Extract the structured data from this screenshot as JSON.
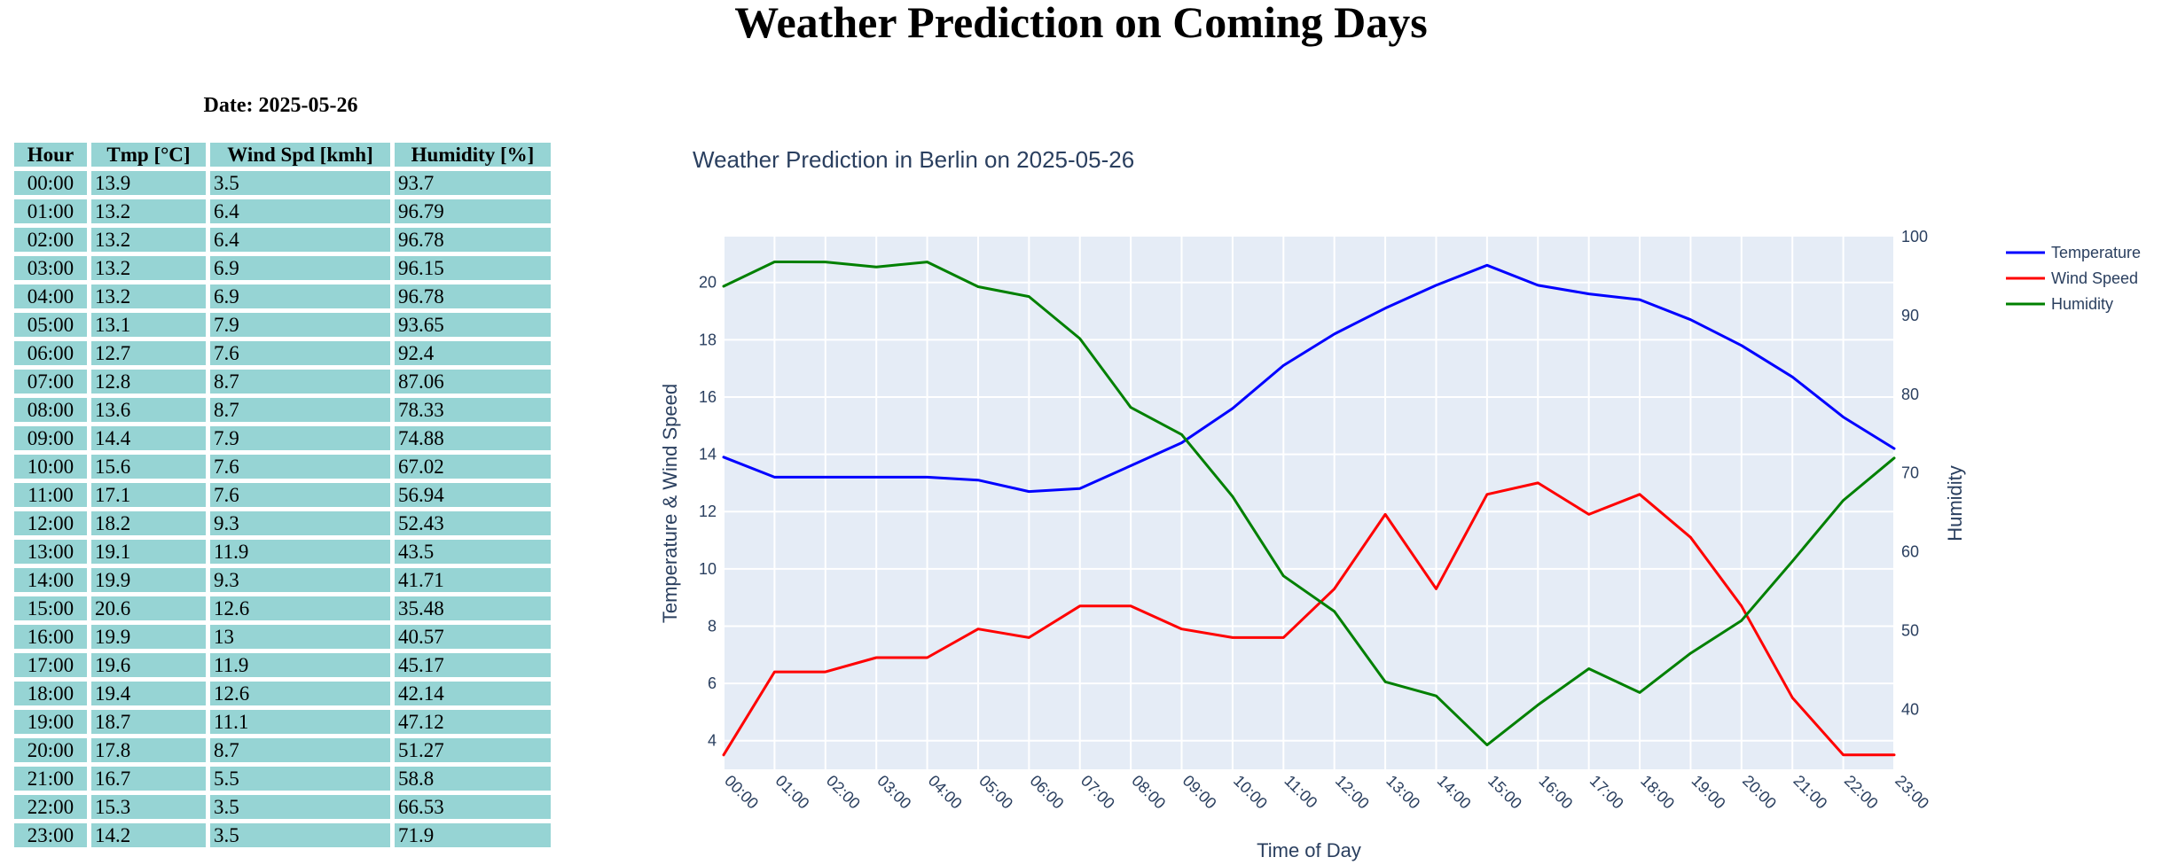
{
  "page": {
    "title": "Weather Prediction on Coming Days"
  },
  "table": {
    "date_label": "Date: 2025-05-26",
    "headers": [
      "Hour",
      "Tmp [°C]",
      "Wind Spd [kmh]",
      "Humidity [%]"
    ],
    "rows": [
      [
        "00:00",
        "13.9",
        "3.5",
        "93.7"
      ],
      [
        "01:00",
        "13.2",
        "6.4",
        "96.79"
      ],
      [
        "02:00",
        "13.2",
        "6.4",
        "96.78"
      ],
      [
        "03:00",
        "13.2",
        "6.9",
        "96.15"
      ],
      [
        "04:00",
        "13.2",
        "6.9",
        "96.78"
      ],
      [
        "05:00",
        "13.1",
        "7.9",
        "93.65"
      ],
      [
        "06:00",
        "12.7",
        "7.6",
        "92.4"
      ],
      [
        "07:00",
        "12.8",
        "8.7",
        "87.06"
      ],
      [
        "08:00",
        "13.6",
        "8.7",
        "78.33"
      ],
      [
        "09:00",
        "14.4",
        "7.9",
        "74.88"
      ],
      [
        "10:00",
        "15.6",
        "7.6",
        "67.02"
      ],
      [
        "11:00",
        "17.1",
        "7.6",
        "56.94"
      ],
      [
        "12:00",
        "18.2",
        "9.3",
        "52.43"
      ],
      [
        "13:00",
        "19.1",
        "11.9",
        "43.5"
      ],
      [
        "14:00",
        "19.9",
        "9.3",
        "41.71"
      ],
      [
        "15:00",
        "20.6",
        "12.6",
        "35.48"
      ],
      [
        "16:00",
        "19.9",
        "13",
        "40.57"
      ],
      [
        "17:00",
        "19.6",
        "11.9",
        "45.17"
      ],
      [
        "18:00",
        "19.4",
        "12.6",
        "42.14"
      ],
      [
        "19:00",
        "18.7",
        "11.1",
        "47.12"
      ],
      [
        "20:00",
        "17.8",
        "8.7",
        "51.27"
      ],
      [
        "21:00",
        "16.7",
        "5.5",
        "58.8"
      ],
      [
        "22:00",
        "15.3",
        "3.5",
        "66.53"
      ],
      [
        "23:00",
        "14.2",
        "3.5",
        "71.9"
      ]
    ]
  },
  "chart_data": {
    "type": "line",
    "title": "Weather Prediction in Berlin on 2025-05-26",
    "xlabel": "Time of Day",
    "ylabel": "Temperature & Wind Speed",
    "y2label": "Humidity",
    "categories": [
      "00:00",
      "01:00",
      "02:00",
      "03:00",
      "04:00",
      "05:00",
      "06:00",
      "07:00",
      "08:00",
      "09:00",
      "10:00",
      "11:00",
      "12:00",
      "13:00",
      "14:00",
      "15:00",
      "16:00",
      "17:00",
      "18:00",
      "19:00",
      "20:00",
      "21:00",
      "22:00",
      "23:00"
    ],
    "ylim": [
      3.0,
      21.6
    ],
    "y_ticks": [
      4,
      6,
      8,
      10,
      12,
      14,
      16,
      18,
      20
    ],
    "y2lim": [
      32.4,
      100
    ],
    "y2_ticks": [
      40,
      50,
      60,
      70,
      80,
      90,
      100
    ],
    "grid": true,
    "legend_position": "top-right",
    "plot_background": "#e5ecf6",
    "series": [
      {
        "name": "Temperature",
        "axis": "left",
        "color": "#0000ff",
        "values": [
          13.9,
          13.2,
          13.2,
          13.2,
          13.2,
          13.1,
          12.7,
          12.8,
          13.6,
          14.4,
          15.6,
          17.1,
          18.2,
          19.1,
          19.9,
          20.6,
          19.9,
          19.6,
          19.4,
          18.7,
          17.8,
          16.7,
          15.3,
          14.2
        ]
      },
      {
        "name": "Wind Speed",
        "axis": "left",
        "color": "#ff0000",
        "values": [
          3.5,
          6.4,
          6.4,
          6.9,
          6.9,
          7.9,
          7.6,
          8.7,
          8.7,
          7.9,
          7.6,
          7.6,
          9.3,
          11.9,
          9.3,
          12.6,
          13,
          11.9,
          12.6,
          11.1,
          8.7,
          5.5,
          3.5,
          3.5
        ]
      },
      {
        "name": "Humidity",
        "axis": "right",
        "color": "#008000",
        "values": [
          93.7,
          96.79,
          96.78,
          96.15,
          96.78,
          93.65,
          92.4,
          87.06,
          78.33,
          74.88,
          67.02,
          56.94,
          52.43,
          43.5,
          41.71,
          35.48,
          40.57,
          45.17,
          42.14,
          47.12,
          51.27,
          58.8,
          66.53,
          71.9
        ]
      }
    ]
  }
}
